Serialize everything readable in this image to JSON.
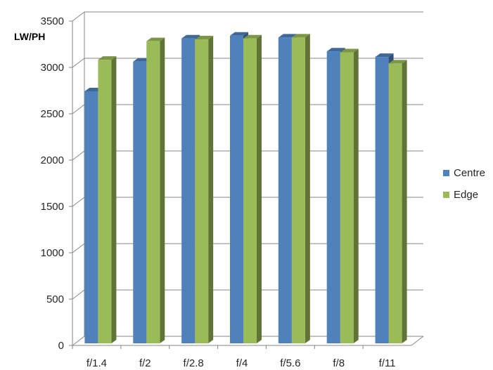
{
  "chart_data": {
    "type": "bar",
    "title": "",
    "xlabel": "",
    "ylabel": "LW/PH",
    "categories": [
      "f/1.4",
      "f/2",
      "f/2.8",
      "f/4",
      "f/5.6",
      "f/8",
      "f/11"
    ],
    "series": [
      {
        "name": "Centre",
        "color": "#4F81BD",
        "values": [
          2720,
          3040,
          3290,
          3320,
          3300,
          3150,
          3090
        ]
      },
      {
        "name": "Edge",
        "color": "#9BBB59",
        "values": [
          3060,
          3260,
          3280,
          3290,
          3300,
          3140,
          3020
        ]
      }
    ],
    "ylim": [
      0,
      3500
    ],
    "yticks": [
      "0",
      "500",
      "1000",
      "1500",
      "2000",
      "2500",
      "3000",
      "3500"
    ],
    "grid": true,
    "legend_position": "right",
    "style": "3d-clustered"
  }
}
